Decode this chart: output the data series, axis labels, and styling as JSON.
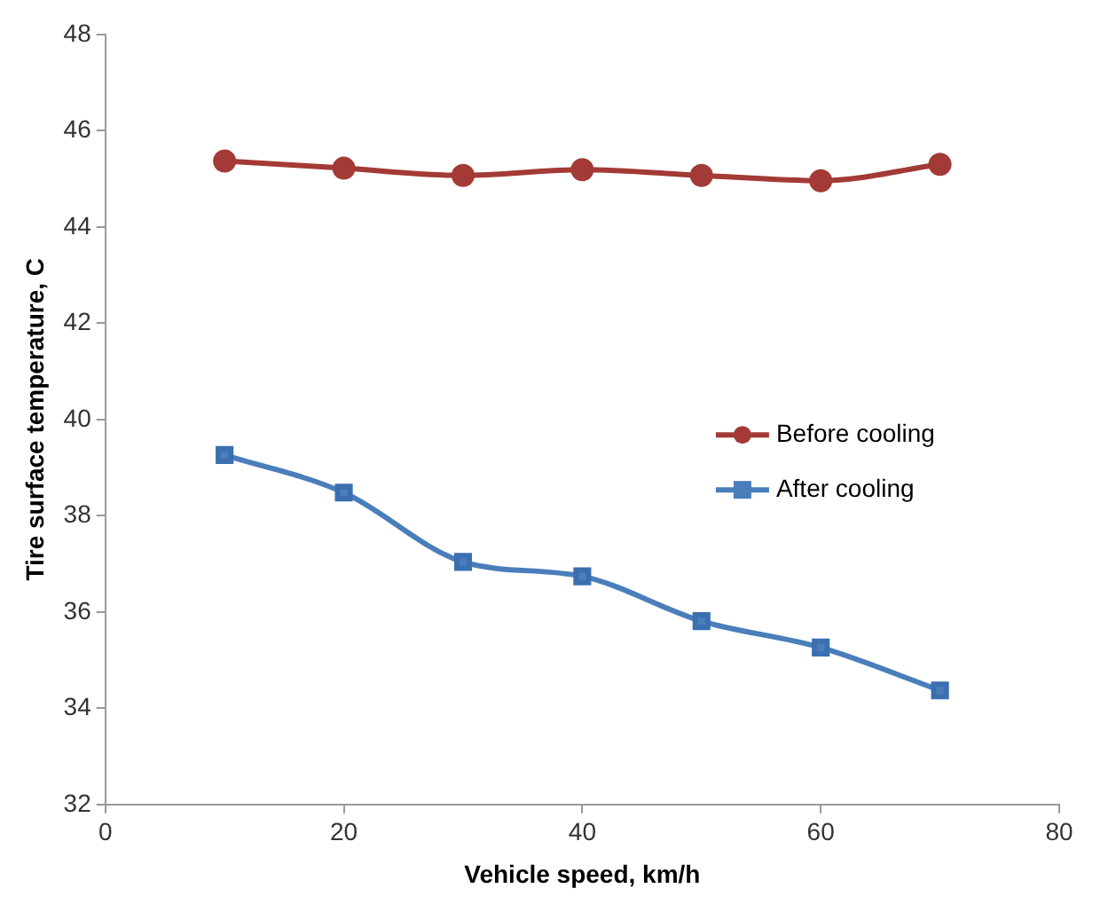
{
  "chart_data": {
    "type": "line",
    "xlabel": "Vehicle speed, km/h",
    "ylabel": "Tire surface temperature, C",
    "x": [
      10,
      20,
      30,
      40,
      50,
      60,
      70
    ],
    "series": [
      {
        "name": "Before cooling",
        "color": "#a33a36",
        "marker": "circle",
        "values": [
          45.37,
          45.22,
          45.07,
          45.19,
          45.07,
          44.96,
          45.3
        ]
      },
      {
        "name": "After cooling",
        "color": "#4a7ebb",
        "marker": "square",
        "values": [
          39.26,
          38.48,
          37.04,
          36.74,
          35.81,
          35.26,
          34.37
        ]
      }
    ],
    "xlim": [
      0,
      80
    ],
    "xticks": [
      0,
      20,
      40,
      60,
      80
    ],
    "ylim": [
      32,
      48
    ],
    "yticks": [
      32,
      34,
      36,
      38,
      40,
      42,
      44,
      46,
      48
    ],
    "grid": false,
    "legend": "right"
  }
}
